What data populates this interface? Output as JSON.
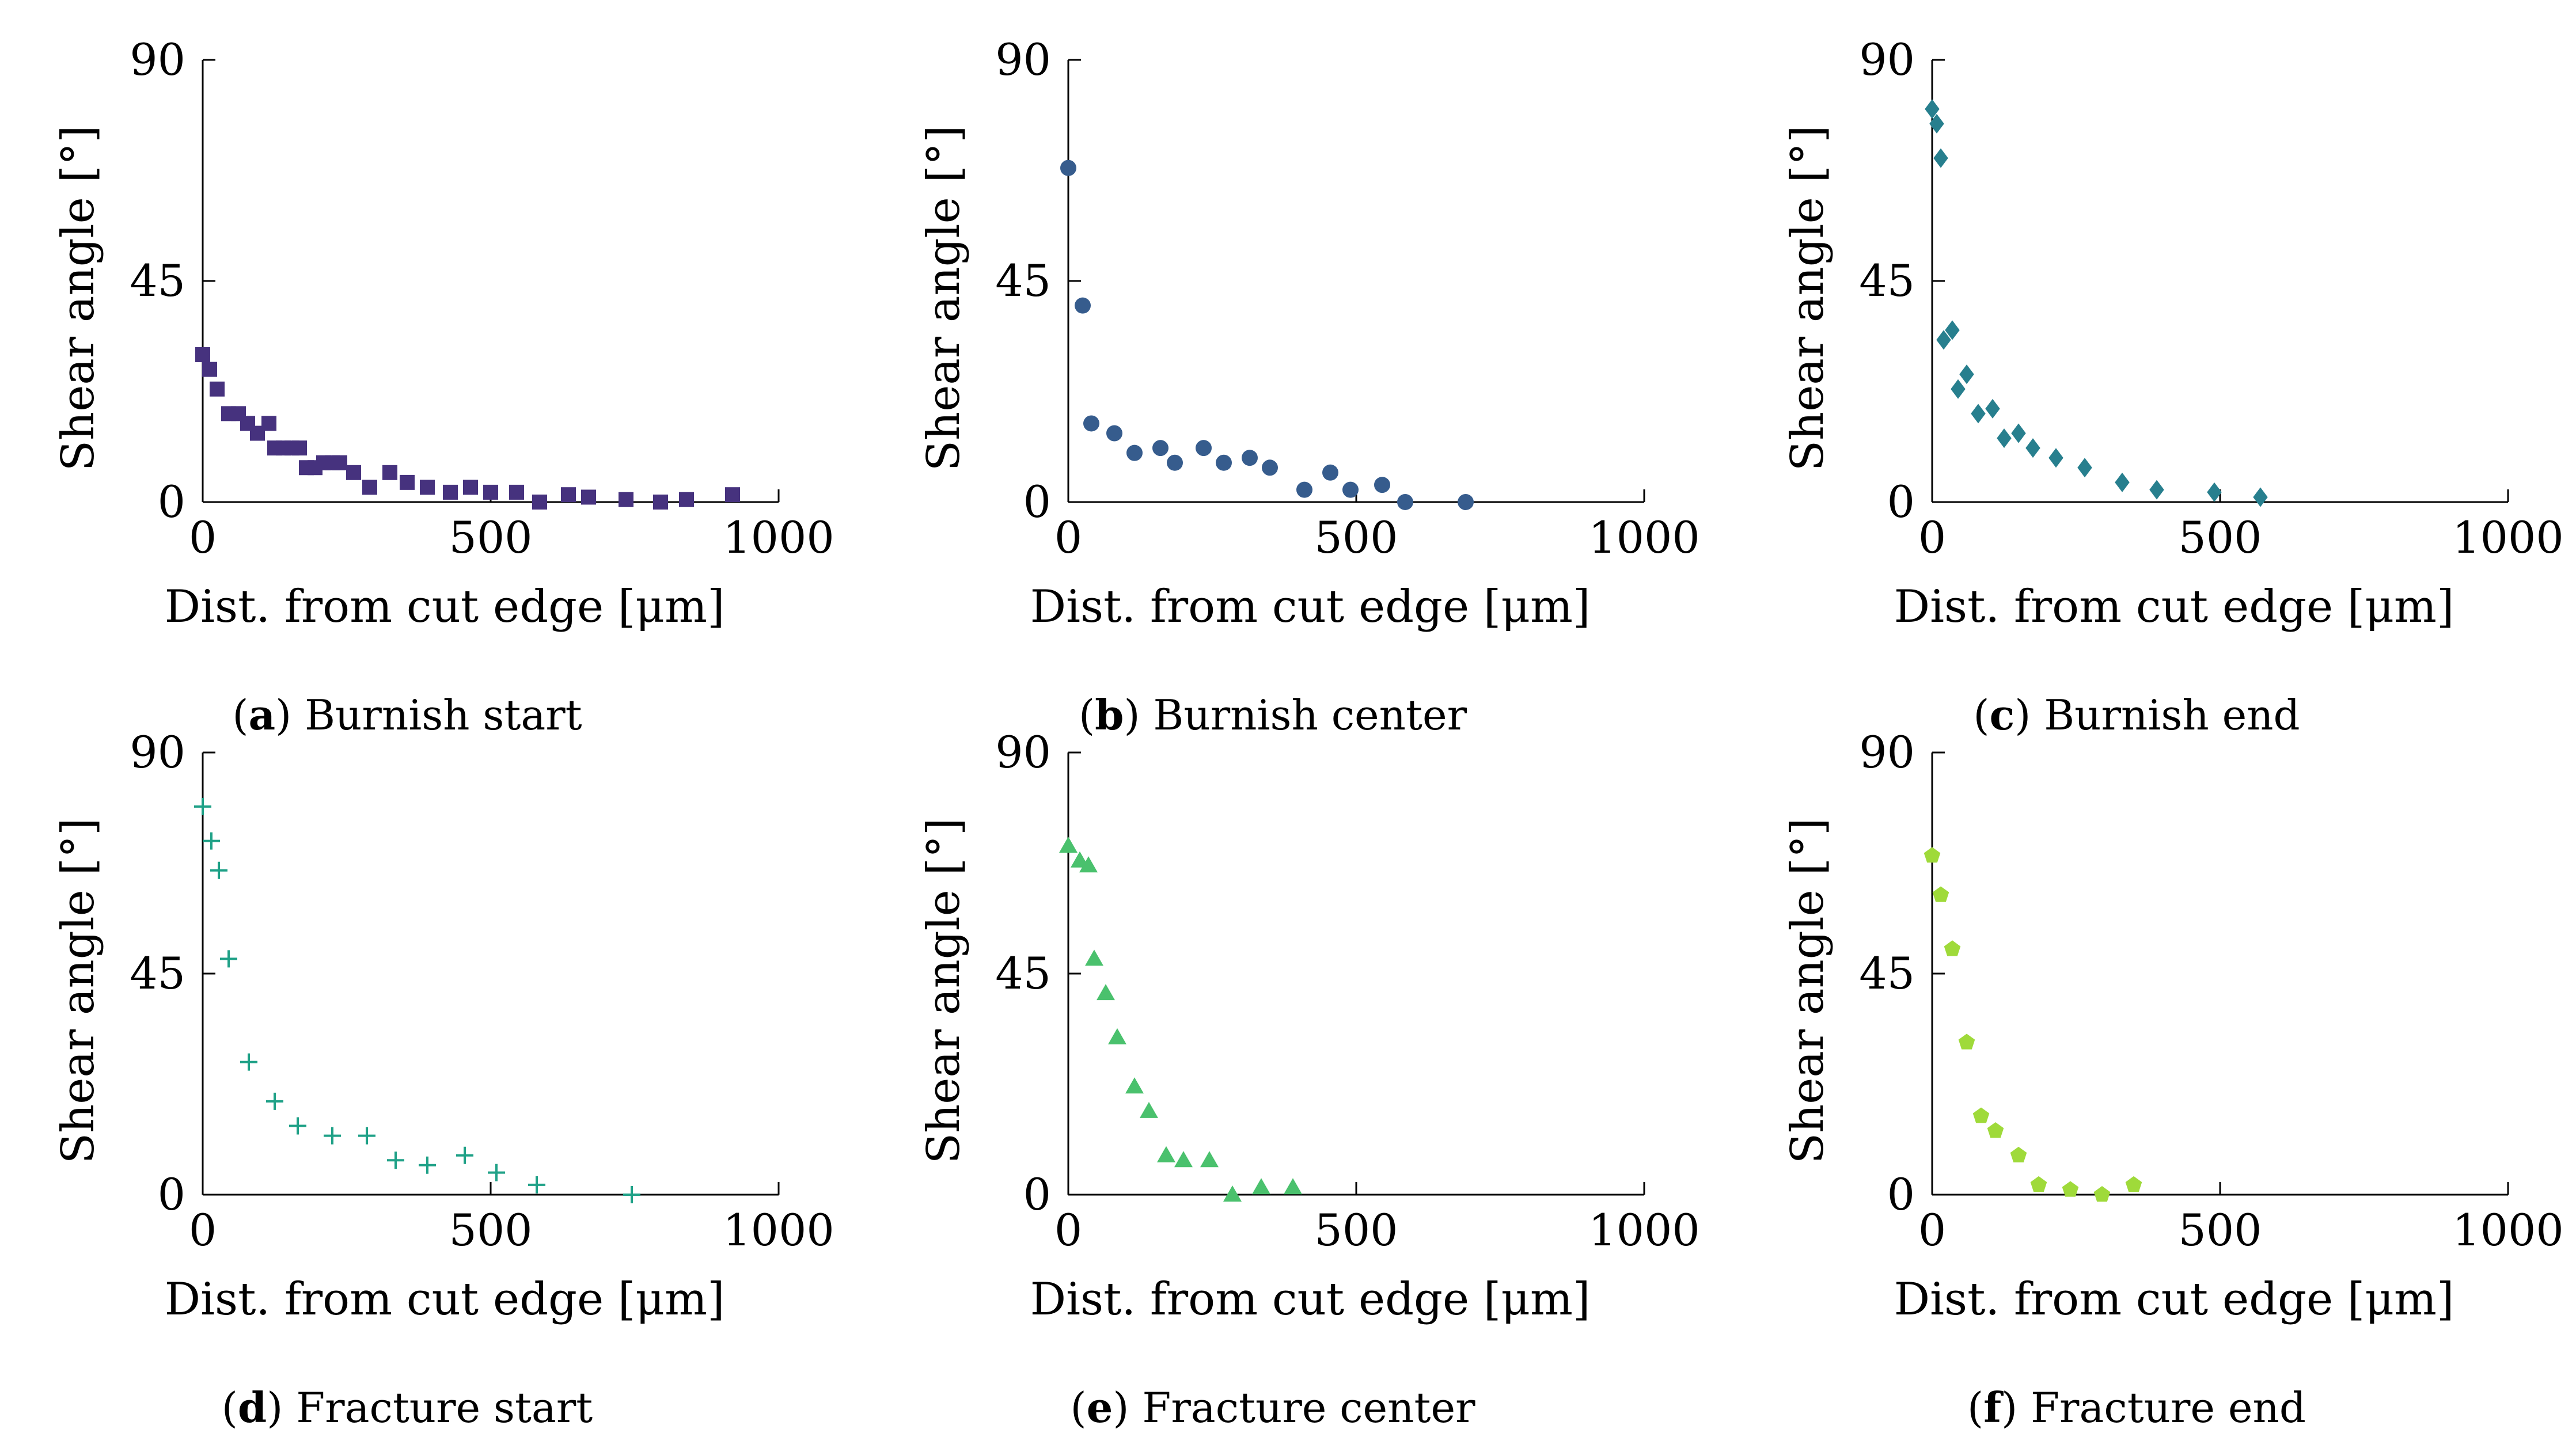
{
  "chart_data": [
    {
      "type": "scatter",
      "panel": "a",
      "caption_letter": "a",
      "caption_text": "Burnish start",
      "xlabel": "Dist. from cut edge [μm]",
      "ylabel": "Shear angle [°]",
      "xlim": [
        0,
        1000
      ],
      "ylim": [
        0,
        90
      ],
      "xticks": [
        "0",
        "500",
        "1000"
      ],
      "yticks": [
        "0",
        "45",
        "90"
      ],
      "marker": "square",
      "color": "#46327e",
      "x": [
        0,
        12,
        25,
        45,
        62,
        78,
        95,
        115,
        125,
        140,
        155,
        168,
        180,
        195,
        210,
        225,
        238,
        262,
        290,
        325,
        355,
        390,
        430,
        465,
        500,
        545,
        585,
        635,
        670,
        735,
        795,
        840,
        920
      ],
      "y": [
        30,
        27,
        23,
        18,
        18,
        16,
        14,
        16,
        11,
        11,
        11,
        11,
        7,
        7,
        8,
        8,
        8,
        6,
        3,
        6,
        4,
        3,
        2,
        3,
        2,
        2,
        0,
        1.5,
        1,
        0.5,
        0,
        0.5,
        1.5
      ]
    },
    {
      "type": "scatter",
      "panel": "b",
      "caption_letter": "b",
      "caption_text": "Burnish center",
      "xlabel": "Dist. from cut edge [μm]",
      "ylabel": "Shear angle [°]",
      "xlim": [
        0,
        1000
      ],
      "ylim": [
        0,
        90
      ],
      "xticks": [
        "0",
        "500",
        "1000"
      ],
      "yticks": [
        "0",
        "45",
        "90"
      ],
      "marker": "circle",
      "color": "#365c8d",
      "x": [
        0,
        25,
        40,
        80,
        115,
        160,
        185,
        235,
        270,
        315,
        350,
        410,
        455,
        490,
        545,
        585,
        690
      ],
      "y": [
        68,
        40,
        16,
        14,
        10,
        11,
        8,
        11,
        8,
        9,
        7,
        2.5,
        6,
        2.5,
        3.5,
        0,
        0
      ]
    },
    {
      "type": "scatter",
      "panel": "c",
      "caption_letter": "c",
      "caption_text": "Burnish end",
      "xlabel": "Dist. from cut edge [μm]",
      "ylabel": "Shear angle [°]",
      "xlim": [
        0,
        1000
      ],
      "ylim": [
        0,
        90
      ],
      "xticks": [
        "0",
        "500",
        "1000"
      ],
      "yticks": [
        "0",
        "45",
        "90"
      ],
      "marker": "diamond",
      "color": "#277f8e",
      "x": [
        0,
        8,
        15,
        20,
        35,
        45,
        60,
        80,
        105,
        125,
        150,
        175,
        215,
        265,
        330,
        390,
        490,
        570
      ],
      "y": [
        80,
        77,
        70,
        33,
        35,
        23,
        26,
        18,
        19,
        13,
        14,
        11,
        9,
        7,
        4,
        2.5,
        2,
        1
      ]
    },
    {
      "type": "scatter",
      "panel": "d",
      "caption_letter": "d",
      "caption_text": "Fracture start",
      "xlabel": "Dist. from cut edge [μm]",
      "ylabel": "Shear angle [°]",
      "xlim": [
        0,
        1000
      ],
      "ylim": [
        0,
        90
      ],
      "xticks": [
        "0",
        "500",
        "1000"
      ],
      "yticks": [
        "0",
        "45",
        "90"
      ],
      "marker": "plus",
      "color": "#1fa187",
      "x": [
        0,
        15,
        28,
        45,
        80,
        125,
        165,
        225,
        285,
        335,
        390,
        455,
        510,
        580,
        745
      ],
      "y": [
        79,
        72,
        66,
        48,
        27,
        19,
        14,
        12,
        12,
        7,
        6,
        8,
        4.5,
        2,
        0
      ]
    },
    {
      "type": "scatter",
      "panel": "e",
      "caption_letter": "e",
      "caption_text": "Fracture center",
      "xlabel": "Dist. from cut edge [μm]",
      "ylabel": "Shear angle [°]",
      "xlim": [
        0,
        1000
      ],
      "ylim": [
        0,
        90
      ],
      "xticks": [
        "0",
        "500",
        "1000"
      ],
      "yticks": [
        "0",
        "45",
        "90"
      ],
      "marker": "triangle",
      "color": "#4ac16d",
      "x": [
        0,
        20,
        35,
        45,
        65,
        85,
        115,
        140,
        170,
        200,
        245,
        285,
        335,
        390
      ],
      "y": [
        71,
        68,
        67,
        48,
        41,
        32,
        22,
        17,
        8,
        7,
        7,
        0,
        1.5,
        1.5
      ]
    },
    {
      "type": "scatter",
      "panel": "f",
      "caption_letter": "f",
      "caption_text": "Fracture end",
      "xlabel": "Dist. from cut edge [μm]",
      "ylabel": "Shear angle [°]",
      "xlim": [
        0,
        1000
      ],
      "ylim": [
        0,
        90
      ],
      "xticks": [
        "0",
        "500",
        "1000"
      ],
      "yticks": [
        "0",
        "45",
        "90"
      ],
      "marker": "pentagon",
      "color": "#9fda3a",
      "x": [
        0,
        15,
        35,
        60,
        85,
        110,
        150,
        185,
        240,
        295,
        350
      ],
      "y": [
        69,
        61,
        50,
        31,
        16,
        13,
        8,
        2,
        1,
        0,
        2
      ]
    }
  ]
}
